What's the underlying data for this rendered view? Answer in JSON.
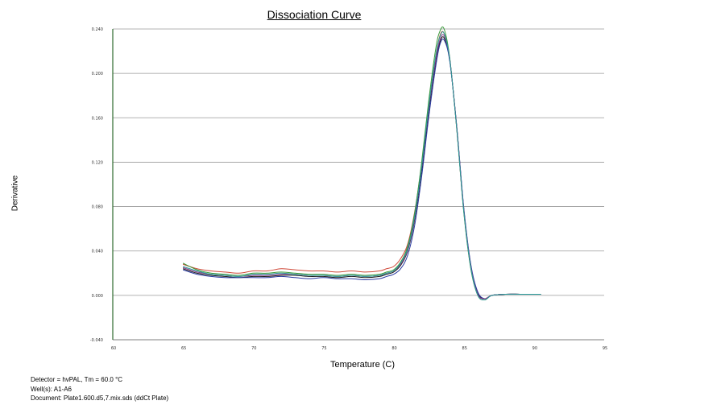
{
  "chart_data": {
    "type": "line",
    "title": "Dissociation Curve",
    "xlabel": "Temperature (C)",
    "ylabel": "Derivative",
    "xlim": [
      60,
      95
    ],
    "ylim": [
      -0.04,
      0.24
    ],
    "x_ticks": [
      "60",
      "65",
      "70",
      "75",
      "80",
      "85",
      "90",
      "95"
    ],
    "y_ticks": [
      "-0.040",
      "0.000",
      "0.040",
      "0.080",
      "0.120",
      "0.160",
      "0.200",
      "0.240"
    ],
    "grid": "horizontal",
    "series": [
      {
        "color": "#d04a3a",
        "x": [
          65.0,
          66.0,
          67.0,
          68.0,
          69.0,
          70.0,
          71.0,
          72.0,
          73.0,
          74.0,
          75.0,
          76.0,
          77.0,
          78.0,
          79.0,
          79.5,
          80.0,
          80.5,
          81.0,
          81.5,
          82.0,
          82.5,
          83.0,
          83.3,
          83.6,
          84.0,
          84.5,
          85.0,
          85.5,
          86.0,
          86.5,
          87.0,
          88.0,
          89.0,
          90.0,
          90.5
        ],
        "y": [
          0.028,
          0.024,
          0.022,
          0.021,
          0.02,
          0.022,
          0.022,
          0.024,
          0.023,
          0.022,
          0.022,
          0.021,
          0.022,
          0.021,
          0.022,
          0.024,
          0.026,
          0.033,
          0.046,
          0.075,
          0.118,
          0.17,
          0.215,
          0.234,
          0.236,
          0.213,
          0.15,
          0.076,
          0.025,
          0.001,
          -0.003,
          0.0,
          0.001,
          0.001,
          0.001,
          0.001
        ]
      },
      {
        "color": "#3a9a3a",
        "x": [
          65.0,
          66.0,
          67.0,
          68.0,
          69.0,
          70.0,
          71.0,
          72.0,
          73.0,
          74.0,
          75.0,
          76.0,
          77.0,
          78.0,
          79.0,
          79.5,
          80.0,
          80.5,
          81.0,
          81.5,
          82.0,
          82.5,
          83.0,
          83.3,
          83.6,
          84.0,
          84.5,
          85.0,
          85.5,
          86.0,
          86.5,
          87.0,
          88.0,
          89.0,
          90.0,
          90.5
        ],
        "y": [
          0.029,
          0.023,
          0.02,
          0.019,
          0.018,
          0.02,
          0.02,
          0.021,
          0.02,
          0.019,
          0.019,
          0.018,
          0.019,
          0.018,
          0.019,
          0.021,
          0.023,
          0.03,
          0.044,
          0.074,
          0.12,
          0.175,
          0.222,
          0.238,
          0.24,
          0.214,
          0.15,
          0.075,
          0.024,
          0.0,
          -0.004,
          0.0,
          0.001,
          0.001,
          0.001,
          0.001
        ]
      },
      {
        "color": "#1a1a1a",
        "x": [
          65.0,
          66.0,
          67.0,
          68.0,
          69.0,
          70.0,
          71.0,
          72.0,
          73.0,
          74.0,
          75.0,
          76.0,
          77.0,
          78.0,
          79.0,
          79.5,
          80.0,
          80.5,
          81.0,
          81.5,
          82.0,
          82.5,
          83.0,
          83.3,
          83.6,
          84.0,
          84.5,
          85.0,
          85.5,
          86.0,
          86.5,
          87.0,
          88.0,
          89.0,
          90.0,
          90.5
        ],
        "y": [
          0.024,
          0.02,
          0.018,
          0.017,
          0.016,
          0.017,
          0.017,
          0.018,
          0.018,
          0.017,
          0.017,
          0.016,
          0.017,
          0.016,
          0.017,
          0.019,
          0.021,
          0.027,
          0.04,
          0.068,
          0.112,
          0.165,
          0.21,
          0.228,
          0.232,
          0.212,
          0.152,
          0.078,
          0.027,
          0.002,
          -0.003,
          0.0,
          0.001,
          0.001,
          0.001,
          0.001
        ]
      },
      {
        "color": "#2a3aa0",
        "x": [
          65.0,
          66.0,
          67.0,
          68.0,
          69.0,
          70.0,
          71.0,
          72.0,
          73.0,
          74.0,
          75.0,
          76.0,
          77.0,
          78.0,
          79.0,
          79.5,
          80.0,
          80.5,
          81.0,
          81.5,
          82.0,
          82.5,
          83.0,
          83.3,
          83.6,
          84.0,
          84.5,
          85.0,
          85.5,
          86.0,
          86.5,
          87.0,
          88.0,
          89.0,
          90.0,
          90.5
        ],
        "y": [
          0.023,
          0.019,
          0.017,
          0.016,
          0.016,
          0.016,
          0.016,
          0.017,
          0.016,
          0.015,
          0.016,
          0.015,
          0.015,
          0.014,
          0.015,
          0.017,
          0.019,
          0.024,
          0.036,
          0.063,
          0.107,
          0.16,
          0.206,
          0.226,
          0.23,
          0.211,
          0.152,
          0.079,
          0.028,
          0.003,
          -0.003,
          0.0,
          0.001,
          0.001,
          0.001,
          0.001
        ]
      },
      {
        "color": "#8a3a8a",
        "x": [
          65.0,
          66.0,
          67.0,
          68.0,
          69.0,
          70.0,
          71.0,
          72.0,
          73.0,
          74.0,
          75.0,
          76.0,
          77.0,
          78.0,
          79.0,
          79.5,
          80.0,
          80.5,
          81.0,
          81.5,
          82.0,
          82.5,
          83.0,
          83.3,
          83.6,
          84.0,
          84.5,
          85.0,
          85.5,
          86.0,
          86.5,
          87.0,
          88.0,
          89.0,
          90.0,
          90.5
        ],
        "y": [
          0.025,
          0.021,
          0.019,
          0.018,
          0.017,
          0.018,
          0.018,
          0.019,
          0.019,
          0.018,
          0.018,
          0.017,
          0.018,
          0.017,
          0.018,
          0.02,
          0.022,
          0.028,
          0.041,
          0.07,
          0.115,
          0.168,
          0.212,
          0.23,
          0.234,
          0.213,
          0.151,
          0.077,
          0.026,
          0.001,
          -0.003,
          0.0,
          0.001,
          0.001,
          0.001,
          0.001
        ]
      },
      {
        "color": "#2a9a9a",
        "x": [
          65.0,
          66.0,
          67.0,
          68.0,
          69.0,
          70.0,
          71.0,
          72.0,
          73.0,
          74.0,
          75.0,
          76.0,
          77.0,
          78.0,
          79.0,
          79.5,
          80.0,
          80.5,
          81.0,
          81.5,
          82.0,
          82.5,
          83.0,
          83.3,
          83.6,
          84.0,
          84.5,
          85.0,
          85.5,
          86.0,
          86.5,
          87.0,
          88.0,
          89.0,
          90.0,
          90.5
        ],
        "y": [
          0.026,
          0.022,
          0.019,
          0.018,
          0.017,
          0.019,
          0.019,
          0.02,
          0.019,
          0.018,
          0.018,
          0.017,
          0.018,
          0.017,
          0.018,
          0.02,
          0.022,
          0.029,
          0.042,
          0.071,
          0.116,
          0.17,
          0.216,
          0.233,
          0.236,
          0.213,
          0.15,
          0.076,
          0.025,
          0.0,
          -0.004,
          0.0,
          0.001,
          0.001,
          0.001,
          0.001
        ]
      }
    ]
  },
  "info": {
    "line1": "Detector = hvPAL, Tm = 60.0 °C",
    "line2": "Well(s): A1-A6",
    "line3": "Document: Plate1.600.d5,7.mix.sds (ddCt Plate)"
  }
}
